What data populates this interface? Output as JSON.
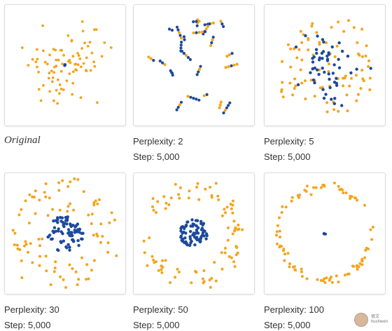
{
  "colors": {
    "outer": "#f4a41c",
    "inner": "#1c4a9c"
  },
  "chart_data": [
    {
      "type": "scatter",
      "caption_lines": [
        "Original"
      ],
      "style": "original"
    },
    {
      "type": "scatter",
      "caption_lines": [
        "Perplexity: 2",
        "Step: 5,000"
      ],
      "perplexity": 2,
      "step": 5000,
      "style": "clusters"
    },
    {
      "type": "scatter",
      "caption_lines": [
        "Perplexity: 5",
        "Step: 5,000"
      ],
      "perplexity": 5,
      "step": 5000,
      "style": "cloud"
    },
    {
      "type": "scatter",
      "caption_lines": [
        "Perplexity: 30",
        "Step: 5,000"
      ],
      "perplexity": 30,
      "step": 5000,
      "style": "ring-loose"
    },
    {
      "type": "scatter",
      "caption_lines": [
        "Perplexity: 50",
        "Step: 5,000"
      ],
      "perplexity": 50,
      "step": 5000,
      "style": "ring"
    },
    {
      "type": "scatter",
      "caption_lines": [
        "Perplexity: 100",
        "Step: 5,000"
      ],
      "perplexity": 100,
      "step": 5000,
      "style": "ring-tight"
    }
  ],
  "watermark": {
    "line1": "很文",
    "line2": "hushwen"
  }
}
